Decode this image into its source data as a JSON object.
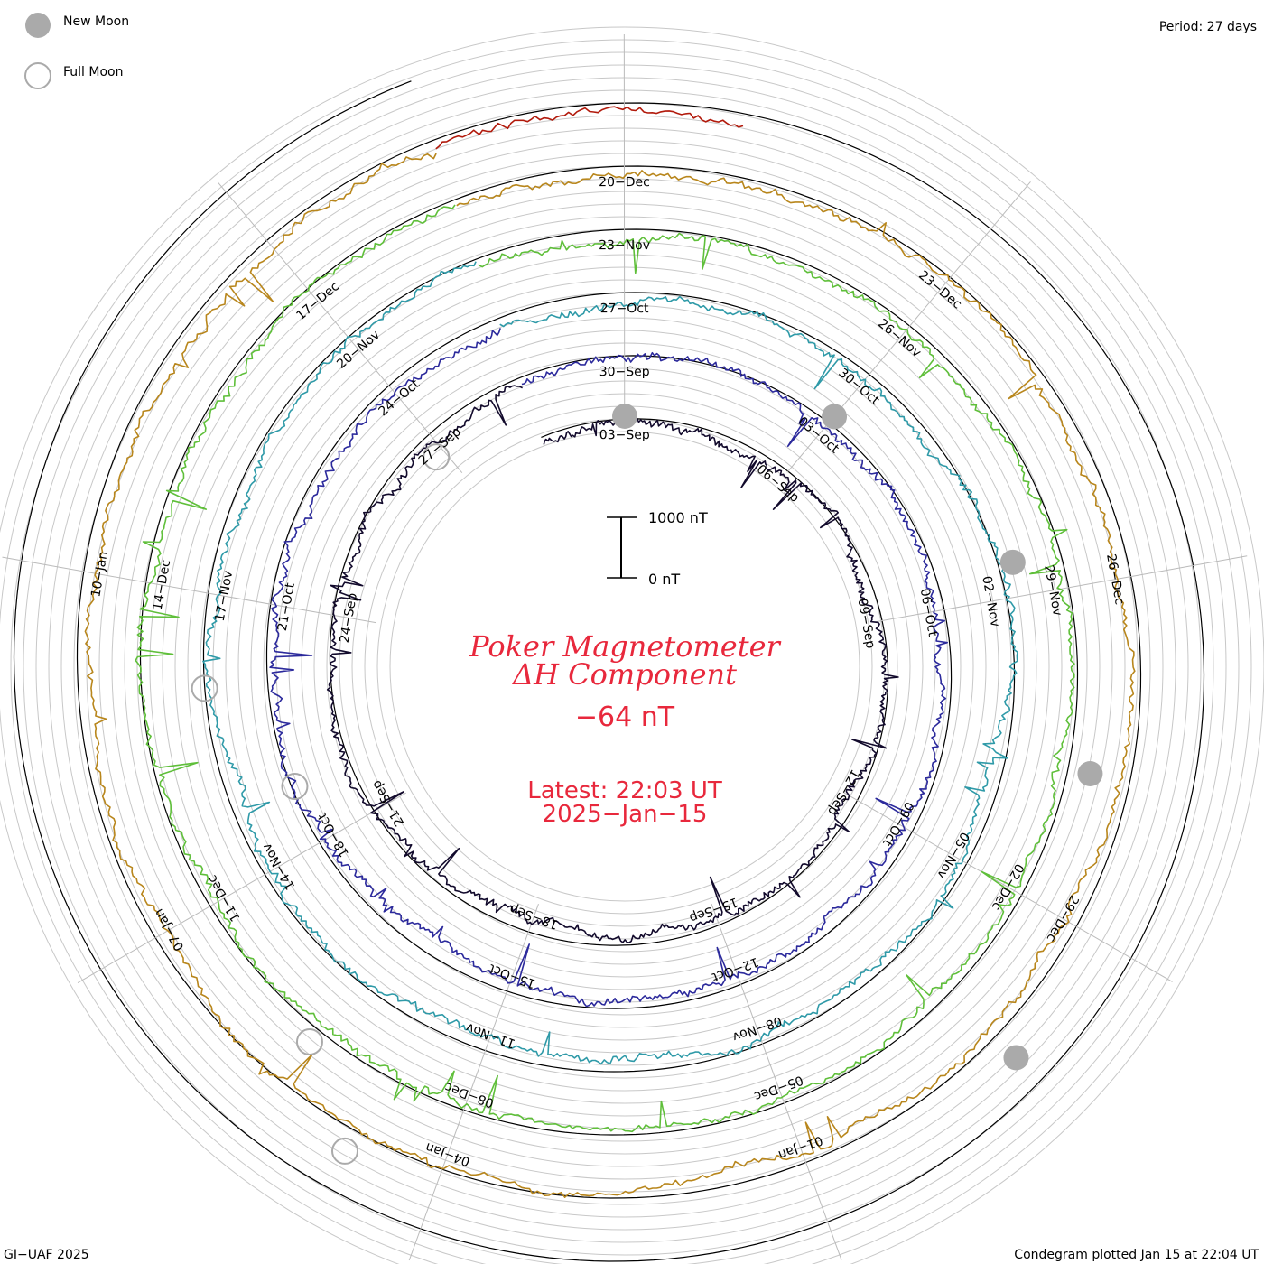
{
  "chart_data": {
    "type": "line",
    "title": "Poker Magnetometer",
    "subtitle": "ΔH Component",
    "current_value": "−64 nT",
    "latest_time": "Latest: 22:03 UT",
    "latest_date": "2025−Jan−15",
    "period_label": "Period: 27 days",
    "scale_top_label": "1000 nT",
    "scale_bottom_label": "0 nT",
    "scale_nT": 1000,
    "legend": [
      {
        "label": "New Moon",
        "style": "filled"
      },
      {
        "label": "Full Moon",
        "style": "open"
      }
    ],
    "new_moon_angles_deg": [
      0,
      40,
      75,
      103,
      135
    ],
    "full_moon_angles_deg": [
      -42,
      -110,
      -93,
      -140,
      -150
    ],
    "rotations": [
      {
        "start": "2024-Aug-31",
        "color": "#120a2c",
        "date_labels": [
          "03−Sep",
          "06−Sep",
          "09−Sep",
          "12−Sep",
          "15−Sep",
          "18−Sep",
          "21−Sep",
          "24−Sep",
          "27−Sep"
        ]
      },
      {
        "start": "2024-Sep-27",
        "color": "#2c2a9c",
        "date_labels": [
          "30−Sep",
          "03−Oct",
          "06−Oct",
          "09−Oct",
          "12−Oct",
          "15−Oct",
          "18−Oct",
          "21−Oct",
          "24−Oct"
        ]
      },
      {
        "start": "2024-Oct-24",
        "color": "#2f9aa8",
        "date_labels": [
          "27−Oct",
          "30−Oct",
          "02−Nov",
          "05−Nov",
          "08−Nov",
          "11−Nov",
          "14−Nov",
          "17−Nov",
          "20−Nov"
        ]
      },
      {
        "start": "2024-Nov-20",
        "color": "#5fbf3a",
        "date_labels": [
          "23−Nov",
          "26−Nov",
          "29−Nov",
          "02−Dec",
          "05−Dec",
          "08−Dec",
          "11−Dec",
          "14−Dec",
          "17−Dec"
        ]
      },
      {
        "start": "2024-Dec-17",
        "color": "#b8861c",
        "date_labels": [
          "20−Dec",
          "23−Dec",
          "26−Dec",
          "29−Dec",
          "01−Jan",
          "04−Jan",
          "07−Jan",
          "10−Jan"
        ]
      },
      {
        "start": "2025-Jan-13",
        "color": "#b21a0c",
        "date_labels": []
      }
    ]
  },
  "footer": {
    "left": "GI−UAF 2025",
    "right": "Condegram plotted Jan 15 at 22:04 UT"
  }
}
